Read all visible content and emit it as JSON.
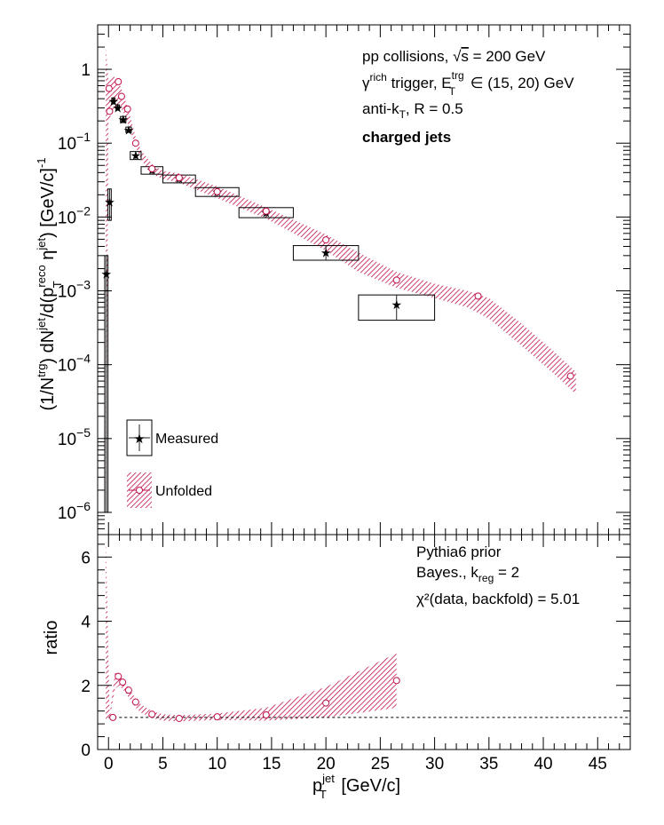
{
  "chart_data": [
    {
      "type": "scatter",
      "panel": "top",
      "x_label_main": "p",
      "x_label_sup": "jet",
      "x_label_sub": "T",
      "x_label_units": "[GeV/c]",
      "y_label_text": "(1/N^trg) dN^jet/d(p_T^reco η^jet) [GeV/c]^-1",
      "xlim": [
        -1,
        48
      ],
      "ylim": [
        5e-07,
        4
      ],
      "log_y": true,
      "x_ticks": [
        0,
        5,
        10,
        15,
        20,
        25,
        30,
        35,
        40,
        45
      ],
      "x_tick_labels": [
        "0",
        "5",
        "10",
        "15",
        "20",
        "25",
        "30",
        "35",
        "40",
        "45"
      ],
      "y_ticks": [
        {
          "v": 1e-06,
          "base": "10",
          "exp": "−6"
        },
        {
          "v": 1e-05,
          "base": "10",
          "exp": "−5"
        },
        {
          "v": 0.0001,
          "base": "10",
          "exp": "−4"
        },
        {
          "v": 0.001,
          "base": "10",
          "exp": "−3"
        },
        {
          "v": 0.01,
          "base": "10",
          "exp": "−2"
        },
        {
          "v": 0.1,
          "base": "10",
          "exp": "−1"
        },
        {
          "v": 1,
          "base": "1",
          "exp": ""
        }
      ],
      "annotations": [
        "pp collisions, √s = 200 GeV",
        "γ^rich trigger, E_T^trg ∈ (15, 20) GeV",
        "anti-k_T, R = 0.5",
        "charged jets"
      ],
      "legend": [
        "Measured",
        "Unfolded"
      ],
      "legend_position": "bottom-left",
      "series": [
        {
          "name": "Measured",
          "color": "#222222",
          "points": [
            {
              "x": -0.2,
              "y": 0.0017,
              "xlo": -0.35,
              "xhi": -0.05,
              "ylo": 1e-06,
              "yhi": 0.003
            },
            {
              "x": 0.1,
              "y": 0.016,
              "xlo": -0.05,
              "xhi": 0.25,
              "ylo": 0.009,
              "yhi": 0.024
            },
            {
              "x": 0.45,
              "y": 0.37,
              "xlo": 0.3,
              "xhi": 0.6,
              "ylo": 0.34,
              "yhi": 0.41
            },
            {
              "x": 0.85,
              "y": 0.3,
              "xlo": 0.7,
              "xhi": 1.0,
              "ylo": 0.28,
              "yhi": 0.33
            },
            {
              "x": 1.35,
              "y": 0.21,
              "xlo": 1.1,
              "xhi": 1.6,
              "ylo": 0.19,
              "yhi": 0.23
            },
            {
              "x": 1.85,
              "y": 0.15,
              "xlo": 1.6,
              "xhi": 2.1,
              "ylo": 0.14,
              "yhi": 0.165
            },
            {
              "x": 2.5,
              "y": 0.068,
              "xlo": 2.0,
              "xhi": 3.0,
              "ylo": 0.06,
              "yhi": 0.077
            },
            {
              "x": 4.0,
              "y": 0.043,
              "xlo": 3.0,
              "xhi": 5.0,
              "ylo": 0.038,
              "yhi": 0.048
            },
            {
              "x": 6.5,
              "y": 0.033,
              "xlo": 5.0,
              "xhi": 8.0,
              "ylo": 0.029,
              "yhi": 0.037
            },
            {
              "x": 10.0,
              "y": 0.022,
              "xlo": 8.0,
              "xhi": 12.0,
              "ylo": 0.019,
              "yhi": 0.025
            },
            {
              "x": 14.5,
              "y": 0.0115,
              "xlo": 12.0,
              "xhi": 17.0,
              "ylo": 0.0098,
              "yhi": 0.0134
            },
            {
              "x": 20.0,
              "y": 0.0033,
              "xlo": 17.0,
              "xhi": 23.0,
              "ylo": 0.0026,
              "yhi": 0.0041
            },
            {
              "x": 26.5,
              "y": 0.00065,
              "xlo": 23.0,
              "xhi": 30.0,
              "ylo": 0.0004,
              "yhi": 0.00088
            }
          ]
        },
        {
          "name": "Unfolded",
          "color": "#c0104a",
          "points": [
            {
              "x": 0.05,
              "y": 0.55
            },
            {
              "x": 0.1,
              "y": 0.27
            },
            {
              "x": 0.9,
              "y": 0.68
            },
            {
              "x": 1.2,
              "y": 0.43
            },
            {
              "x": 1.75,
              "y": 0.29
            },
            {
              "x": 2.5,
              "y": 0.1
            },
            {
              "x": 4.0,
              "y": 0.045
            },
            {
              "x": 6.5,
              "y": 0.034
            },
            {
              "x": 10.0,
              "y": 0.022
            },
            {
              "x": 14.5,
              "y": 0.012
            },
            {
              "x": 20.0,
              "y": 0.0049
            },
            {
              "x": 26.5,
              "y": 0.0014
            },
            {
              "x": 34.0,
              "y": 0.00085
            },
            {
              "x": 42.5,
              "y": 7e-05
            }
          ],
          "band": [
            {
              "x": -0.25,
              "lo": 1e-06,
              "hi": 2.0
            },
            {
              "x": 0.0,
              "lo": 0.2,
              "hi": 0.7
            },
            {
              "x": 0.5,
              "lo": 0.3,
              "hi": 0.8
            },
            {
              "x": 1.0,
              "lo": 0.33,
              "hi": 0.65
            },
            {
              "x": 1.5,
              "lo": 0.24,
              "hi": 0.4
            },
            {
              "x": 2.0,
              "lo": 0.15,
              "hi": 0.23
            },
            {
              "x": 2.5,
              "lo": 0.088,
              "hi": 0.12
            },
            {
              "x": 3.0,
              "lo": 0.06,
              "hi": 0.08
            },
            {
              "x": 4.0,
              "lo": 0.038,
              "hi": 0.052
            },
            {
              "x": 5.0,
              "lo": 0.033,
              "hi": 0.042
            },
            {
              "x": 6.5,
              "lo": 0.029,
              "hi": 0.039
            },
            {
              "x": 10.0,
              "lo": 0.018,
              "hi": 0.026
            },
            {
              "x": 14.5,
              "lo": 0.0095,
              "hi": 0.0135
            },
            {
              "x": 20.0,
              "lo": 0.0035,
              "hi": 0.0058
            },
            {
              "x": 23.0,
              "lo": 0.0018,
              "hi": 0.0033
            },
            {
              "x": 26.5,
              "lo": 0.0011,
              "hi": 0.0018
            },
            {
              "x": 30.0,
              "lo": 0.0008,
              "hi": 0.00125
            },
            {
              "x": 33.0,
              "lo": 0.0006,
              "hi": 0.001
            },
            {
              "x": 35.0,
              "lo": 0.00042,
              "hi": 0.0008
            },
            {
              "x": 38.0,
              "lo": 0.00018,
              "hi": 0.00036
            },
            {
              "x": 41.0,
              "lo": 7.5e-05,
              "hi": 0.00015
            },
            {
              "x": 43.0,
              "lo": 4e-05,
              "hi": 8e-05
            }
          ]
        }
      ]
    },
    {
      "type": "scatter",
      "panel": "bottom",
      "ylabel": "ratio",
      "xlim": [
        -1,
        48
      ],
      "ylim": [
        0,
        6.7
      ],
      "y_ticks": [
        0,
        2,
        4,
        6
      ],
      "y_tick_labels": [
        "0",
        "2",
        "4",
        "6"
      ],
      "reference_line": 1,
      "annotations": [
        "Pythia6 prior",
        "Bayes., k_reg = 2",
        "χ²(data, backfold) = 5.01"
      ],
      "series": [
        {
          "name": "Unfolded/Measured",
          "color": "#c0104a",
          "points": [
            {
              "x": 0.4,
              "y": 1.0
            },
            {
              "x": 0.9,
              "y": 2.28
            },
            {
              "x": 1.3,
              "y": 2.1
            },
            {
              "x": 1.85,
              "y": 1.85
            },
            {
              "x": 2.5,
              "y": 1.48
            },
            {
              "x": 4.0,
              "y": 1.1
            },
            {
              "x": 6.5,
              "y": 0.97
            },
            {
              "x": 10.0,
              "y": 1.02
            },
            {
              "x": 14.5,
              "y": 1.08
            },
            {
              "x": 20.0,
              "y": 1.45
            },
            {
              "x": 26.5,
              "y": 2.15
            }
          ],
          "band": [
            {
              "x": -0.25,
              "lo": 0.9,
              "hi": 6.7
            },
            {
              "x": 0.1,
              "lo": 0.95,
              "hi": 1.1
            },
            {
              "x": 0.6,
              "lo": 1.9,
              "hi": 2.4
            },
            {
              "x": 1.0,
              "lo": 2.0,
              "hi": 2.3
            },
            {
              "x": 1.5,
              "lo": 1.8,
              "hi": 2.1
            },
            {
              "x": 2.0,
              "lo": 1.55,
              "hi": 1.85
            },
            {
              "x": 2.5,
              "lo": 1.3,
              "hi": 1.6
            },
            {
              "x": 3.0,
              "lo": 1.15,
              "hi": 1.4
            },
            {
              "x": 4.0,
              "lo": 0.98,
              "hi": 1.2
            },
            {
              "x": 5.0,
              "lo": 0.9,
              "hi": 1.1
            },
            {
              "x": 6.5,
              "lo": 0.88,
              "hi": 1.07
            },
            {
              "x": 10.0,
              "lo": 0.92,
              "hi": 1.12
            },
            {
              "x": 14.5,
              "lo": 0.9,
              "hi": 1.3
            },
            {
              "x": 20.0,
              "lo": 1.0,
              "hi": 1.95
            },
            {
              "x": 26.5,
              "lo": 1.3,
              "hi": 3.0
            }
          ]
        }
      ]
    }
  ]
}
